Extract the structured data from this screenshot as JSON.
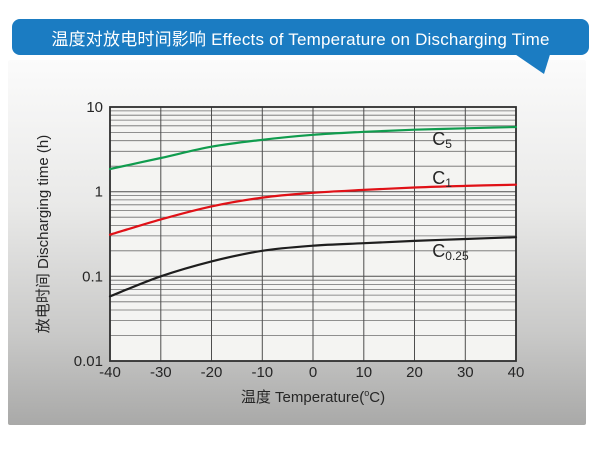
{
  "banner": {
    "title": "温度对放电时间影响 Effects of Temperature on Discharging Time",
    "bg_color": "#1b7cc2",
    "text_color": "#ffffff"
  },
  "chart_data": {
    "type": "line",
    "title": "温度对放电时间影响 Effects of Temperature on Discharging Time",
    "xlabel": {
      "prefix": "温度  Temperature(",
      "sup": "o",
      "suffix": "C)"
    },
    "ylabel": "放电时间 Discharging time (h)",
    "x_axis": {
      "range": [
        -40,
        40
      ],
      "ticks": [
        -40,
        -30,
        -20,
        -10,
        0,
        10,
        20,
        30,
        40
      ],
      "tick_labels": [
        "-40",
        "-30",
        "-20",
        "-10",
        "0",
        "10",
        "20",
        "30",
        "40"
      ]
    },
    "y_axis": {
      "scale": "log",
      "range": [
        0.01,
        10
      ],
      "ticks": [
        10,
        1,
        0.1,
        0.01
      ],
      "tick_labels": [
        "10",
        "1",
        "0.1",
        "0.01"
      ]
    },
    "grid": true,
    "legend_position": "inline-labels",
    "x": [
      -40,
      -30,
      -20,
      -10,
      0,
      10,
      20,
      30,
      40
    ],
    "series": [
      {
        "name": "C5",
        "label_main": "C",
        "label_sub": "5",
        "color": "#109c4e",
        "values": [
          1.85,
          2.5,
          3.4,
          4.1,
          4.7,
          5.1,
          5.4,
          5.6,
          5.8
        ],
        "label_at": {
          "x": 23.5,
          "y": 3.56
        }
      },
      {
        "name": "C1",
        "label_main": "C",
        "label_sub": "1",
        "color": "#e01117",
        "values": [
          0.31,
          0.47,
          0.67,
          0.85,
          0.97,
          1.05,
          1.12,
          1.17,
          1.21
        ],
        "label_at": {
          "x": 23.5,
          "y": 1.23
        }
      },
      {
        "name": "C0.25",
        "label_main": "C",
        "label_sub": "0.25",
        "color": "#1e1e1e",
        "values": [
          0.058,
          0.1,
          0.15,
          0.2,
          0.23,
          0.246,
          0.262,
          0.276,
          0.29
        ],
        "label_at": {
          "x": 23.5,
          "y": 0.169
        }
      }
    ],
    "style": {
      "plot_bg": "#f4f4f2",
      "grid_major_color": "#4e4e4e",
      "grid_minor_color": "#6e6e6e",
      "frame_color": "#2f2f2f",
      "text_color": "#262626"
    }
  }
}
